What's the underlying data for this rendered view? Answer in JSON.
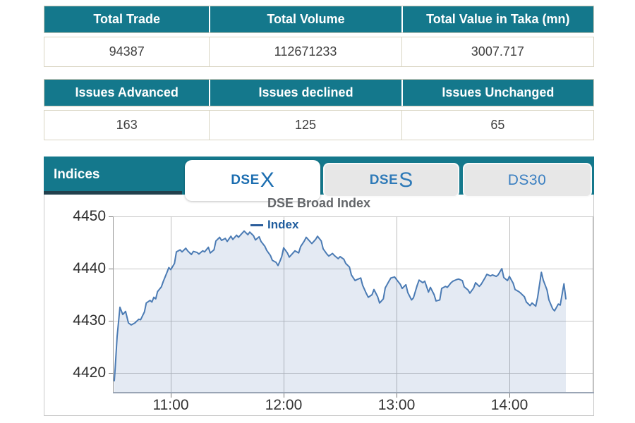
{
  "tables": [
    {
      "headers": [
        "Total Trade",
        "Total Volume",
        "Total Value in Taka (mn)"
      ],
      "values": [
        "94387",
        "112671233",
        "3007.717"
      ]
    },
    {
      "headers": [
        "Issues Advanced",
        "Issues declined",
        "Issues Unchanged"
      ],
      "values": [
        "163",
        "125",
        "65"
      ]
    }
  ],
  "panel": {
    "label": "Indices",
    "tabs": [
      {
        "prefix": "DSE",
        "suffix": "X",
        "active": true
      },
      {
        "prefix": "DSE",
        "suffix": "S",
        "active": false
      },
      {
        "prefix": "DS30",
        "suffix": "",
        "active": false
      }
    ]
  },
  "chart_data": {
    "type": "area",
    "title": "DSE Broad Index",
    "legend": [
      {
        "name": "Index",
        "color": "#2b5d9b"
      }
    ],
    "xlabel": "",
    "ylabel": "",
    "x_axis": "time of day, plot spans approx 10:29 to 14:44, data 10:30 to 14:30",
    "x_ticks": [
      {
        "m": 30,
        "label": "11:00"
      },
      {
        "m": 90,
        "label": "12:00"
      },
      {
        "m": 150,
        "label": "13:00"
      },
      {
        "m": 210,
        "label": "14:00"
      }
    ],
    "y_ticks": [
      4420,
      4430,
      4440,
      4450
    ],
    "ylim": [
      4416.1,
      4450
    ],
    "grid": true,
    "legend_position": "top-center",
    "colors": {
      "line": "#4b7bb4",
      "fill": "rgba(76,114,176,0.15)",
      "grid_h": "#c6c6c6",
      "grid_v": "#bdbdbd",
      "axis": "#9aa5b5",
      "tick": "#777777"
    },
    "series": [
      {
        "name": "Index",
        "points_minutes_after_1030_vs_index": [
          [
            0,
            4418.5
          ],
          [
            0.5,
            4421
          ],
          [
            1.5,
            4427
          ],
          [
            3,
            4432.6
          ],
          [
            4.5,
            4431.2
          ],
          [
            6,
            4431.8
          ],
          [
            7.5,
            4429.6
          ],
          [
            9,
            4429.2
          ],
          [
            11,
            4429.6
          ],
          [
            13,
            4430.3
          ],
          [
            14,
            4430.2
          ],
          [
            16,
            4431.7
          ],
          [
            17,
            4433.4
          ],
          [
            19,
            4433.9
          ],
          [
            20,
            4433.6
          ],
          [
            21,
            4434.5
          ],
          [
            22,
            4434.2
          ],
          [
            23,
            4435.6
          ],
          [
            25,
            4436.5
          ],
          [
            26,
            4437.5
          ],
          [
            28,
            4439.3
          ],
          [
            29,
            4440.2
          ],
          [
            30,
            4439.8
          ],
          [
            32,
            4441
          ],
          [
            33,
            4443.2
          ],
          [
            35,
            4443.6
          ],
          [
            36,
            4443.2
          ],
          [
            38,
            4443.9
          ],
          [
            39,
            4443.4
          ],
          [
            41,
            4442.7
          ],
          [
            42,
            4443.3
          ],
          [
            44,
            4443.1
          ],
          [
            45,
            4442.8
          ],
          [
            47,
            4443.4
          ],
          [
            48,
            4443.2
          ],
          [
            50,
            4444.1
          ],
          [
            51,
            4443
          ],
          [
            53,
            4443.6
          ],
          [
            54,
            4445.3
          ],
          [
            56,
            4446
          ],
          [
            57,
            4445.4
          ],
          [
            59,
            4445.8
          ],
          [
            60,
            4445.2
          ],
          [
            62,
            4446.2
          ],
          [
            63,
            4445.6
          ],
          [
            65,
            4446.4
          ],
          [
            66,
            4446
          ],
          [
            68,
            4446.8
          ],
          [
            69,
            4447.2
          ],
          [
            71,
            4446.5
          ],
          [
            72,
            4447
          ],
          [
            74,
            4446.3
          ],
          [
            75,
            4445.5
          ],
          [
            77,
            4446.1
          ],
          [
            78,
            4445.2
          ],
          [
            80,
            4444.3
          ],
          [
            81,
            4443.5
          ],
          [
            83,
            4442.5
          ],
          [
            84,
            4441.6
          ],
          [
            86,
            4441.2
          ],
          [
            87,
            4440.6
          ],
          [
            88,
            4441.4
          ],
          [
            89,
            4442.3
          ],
          [
            90,
            4444
          ],
          [
            92,
            4443
          ],
          [
            93,
            4442.2
          ],
          [
            95,
            4443
          ],
          [
            96,
            4443.4
          ],
          [
            98,
            4443
          ],
          [
            99,
            4444.2
          ],
          [
            101,
            4445.3
          ],
          [
            102,
            4446
          ],
          [
            104,
            4445.2
          ],
          [
            105,
            4444.8
          ],
          [
            107,
            4445.6
          ],
          [
            108,
            4446.2
          ],
          [
            110,
            4445.3
          ],
          [
            111,
            4443.8
          ],
          [
            113,
            4442.8
          ],
          [
            114,
            4442.4
          ],
          [
            116,
            4442.9
          ],
          [
            117,
            4442.5
          ],
          [
            119,
            4441.9
          ],
          [
            120,
            4442.3
          ],
          [
            122,
            4441.8
          ],
          [
            123,
            4441
          ],
          [
            125,
            4440.3
          ],
          [
            126,
            4438.8
          ],
          [
            128,
            4437.7
          ],
          [
            129,
            4437.9
          ],
          [
            131,
            4438.2
          ],
          [
            132,
            4436.8
          ],
          [
            134,
            4435.2
          ],
          [
            135,
            4434.5
          ],
          [
            137,
            4435
          ],
          [
            138,
            4436
          ],
          [
            140,
            4434.6
          ],
          [
            141,
            4433.4
          ],
          [
            143,
            4434.2
          ],
          [
            144,
            4436.3
          ],
          [
            146,
            4437.6
          ],
          [
            147,
            4438.2
          ],
          [
            149,
            4438.4
          ],
          [
            150,
            4437.9
          ],
          [
            152,
            4437
          ],
          [
            153,
            4436.2
          ],
          [
            155,
            4436.9
          ],
          [
            156,
            4435.4
          ],
          [
            158,
            4434
          ],
          [
            159,
            4434.4
          ],
          [
            161,
            4436.8
          ],
          [
            162,
            4437.8
          ],
          [
            164,
            4437.3
          ],
          [
            165,
            4437.6
          ],
          [
            167,
            4435.5
          ],
          [
            168,
            4436.4
          ],
          [
            170,
            4435
          ],
          [
            171,
            4433.8
          ],
          [
            173,
            4434
          ],
          [
            174,
            4436.2
          ],
          [
            176,
            4436.6
          ],
          [
            177,
            4436.4
          ],
          [
            179,
            4437.3
          ],
          [
            180,
            4437.6
          ],
          [
            182,
            4437.9
          ],
          [
            183,
            4438
          ],
          [
            185,
            4437.7
          ],
          [
            186,
            4436.5
          ],
          [
            188,
            4435.9
          ],
          [
            189,
            4435.3
          ],
          [
            191,
            4436.3
          ],
          [
            192,
            4437.3
          ],
          [
            194,
            4436.6
          ],
          [
            195,
            4437
          ],
          [
            197,
            4438.2
          ],
          [
            198,
            4438.9
          ],
          [
            200,
            4438.6
          ],
          [
            201,
            4438.8
          ],
          [
            203,
            4438.5
          ],
          [
            204,
            4438.8
          ],
          [
            206,
            4440
          ],
          [
            207,
            4438.3
          ],
          [
            209,
            4437.7
          ],
          [
            210,
            4438.5
          ],
          [
            212,
            4437.2
          ],
          [
            213,
            4436
          ],
          [
            215,
            4435.6
          ],
          [
            216,
            4435.3
          ],
          [
            218,
            4434.6
          ],
          [
            219,
            4433.6
          ],
          [
            221,
            4432.9
          ],
          [
            222,
            4433.4
          ],
          [
            224,
            4432.8
          ],
          [
            225,
            4434.5
          ],
          [
            227,
            4439.3
          ],
          [
            228,
            4437.8
          ],
          [
            230,
            4435.9
          ],
          [
            231,
            4434
          ],
          [
            233,
            4432.3
          ],
          [
            234,
            4431.9
          ],
          [
            236,
            4433.2
          ],
          [
            237,
            4433
          ],
          [
            239,
            4437.1
          ],
          [
            240,
            4434.2
          ]
        ]
      }
    ]
  },
  "colors": {
    "accent_teal": "#14788c",
    "underline_dark": "#22404d",
    "table_border": "#d9d5c3",
    "tab_blue": "#1b6db0"
  }
}
